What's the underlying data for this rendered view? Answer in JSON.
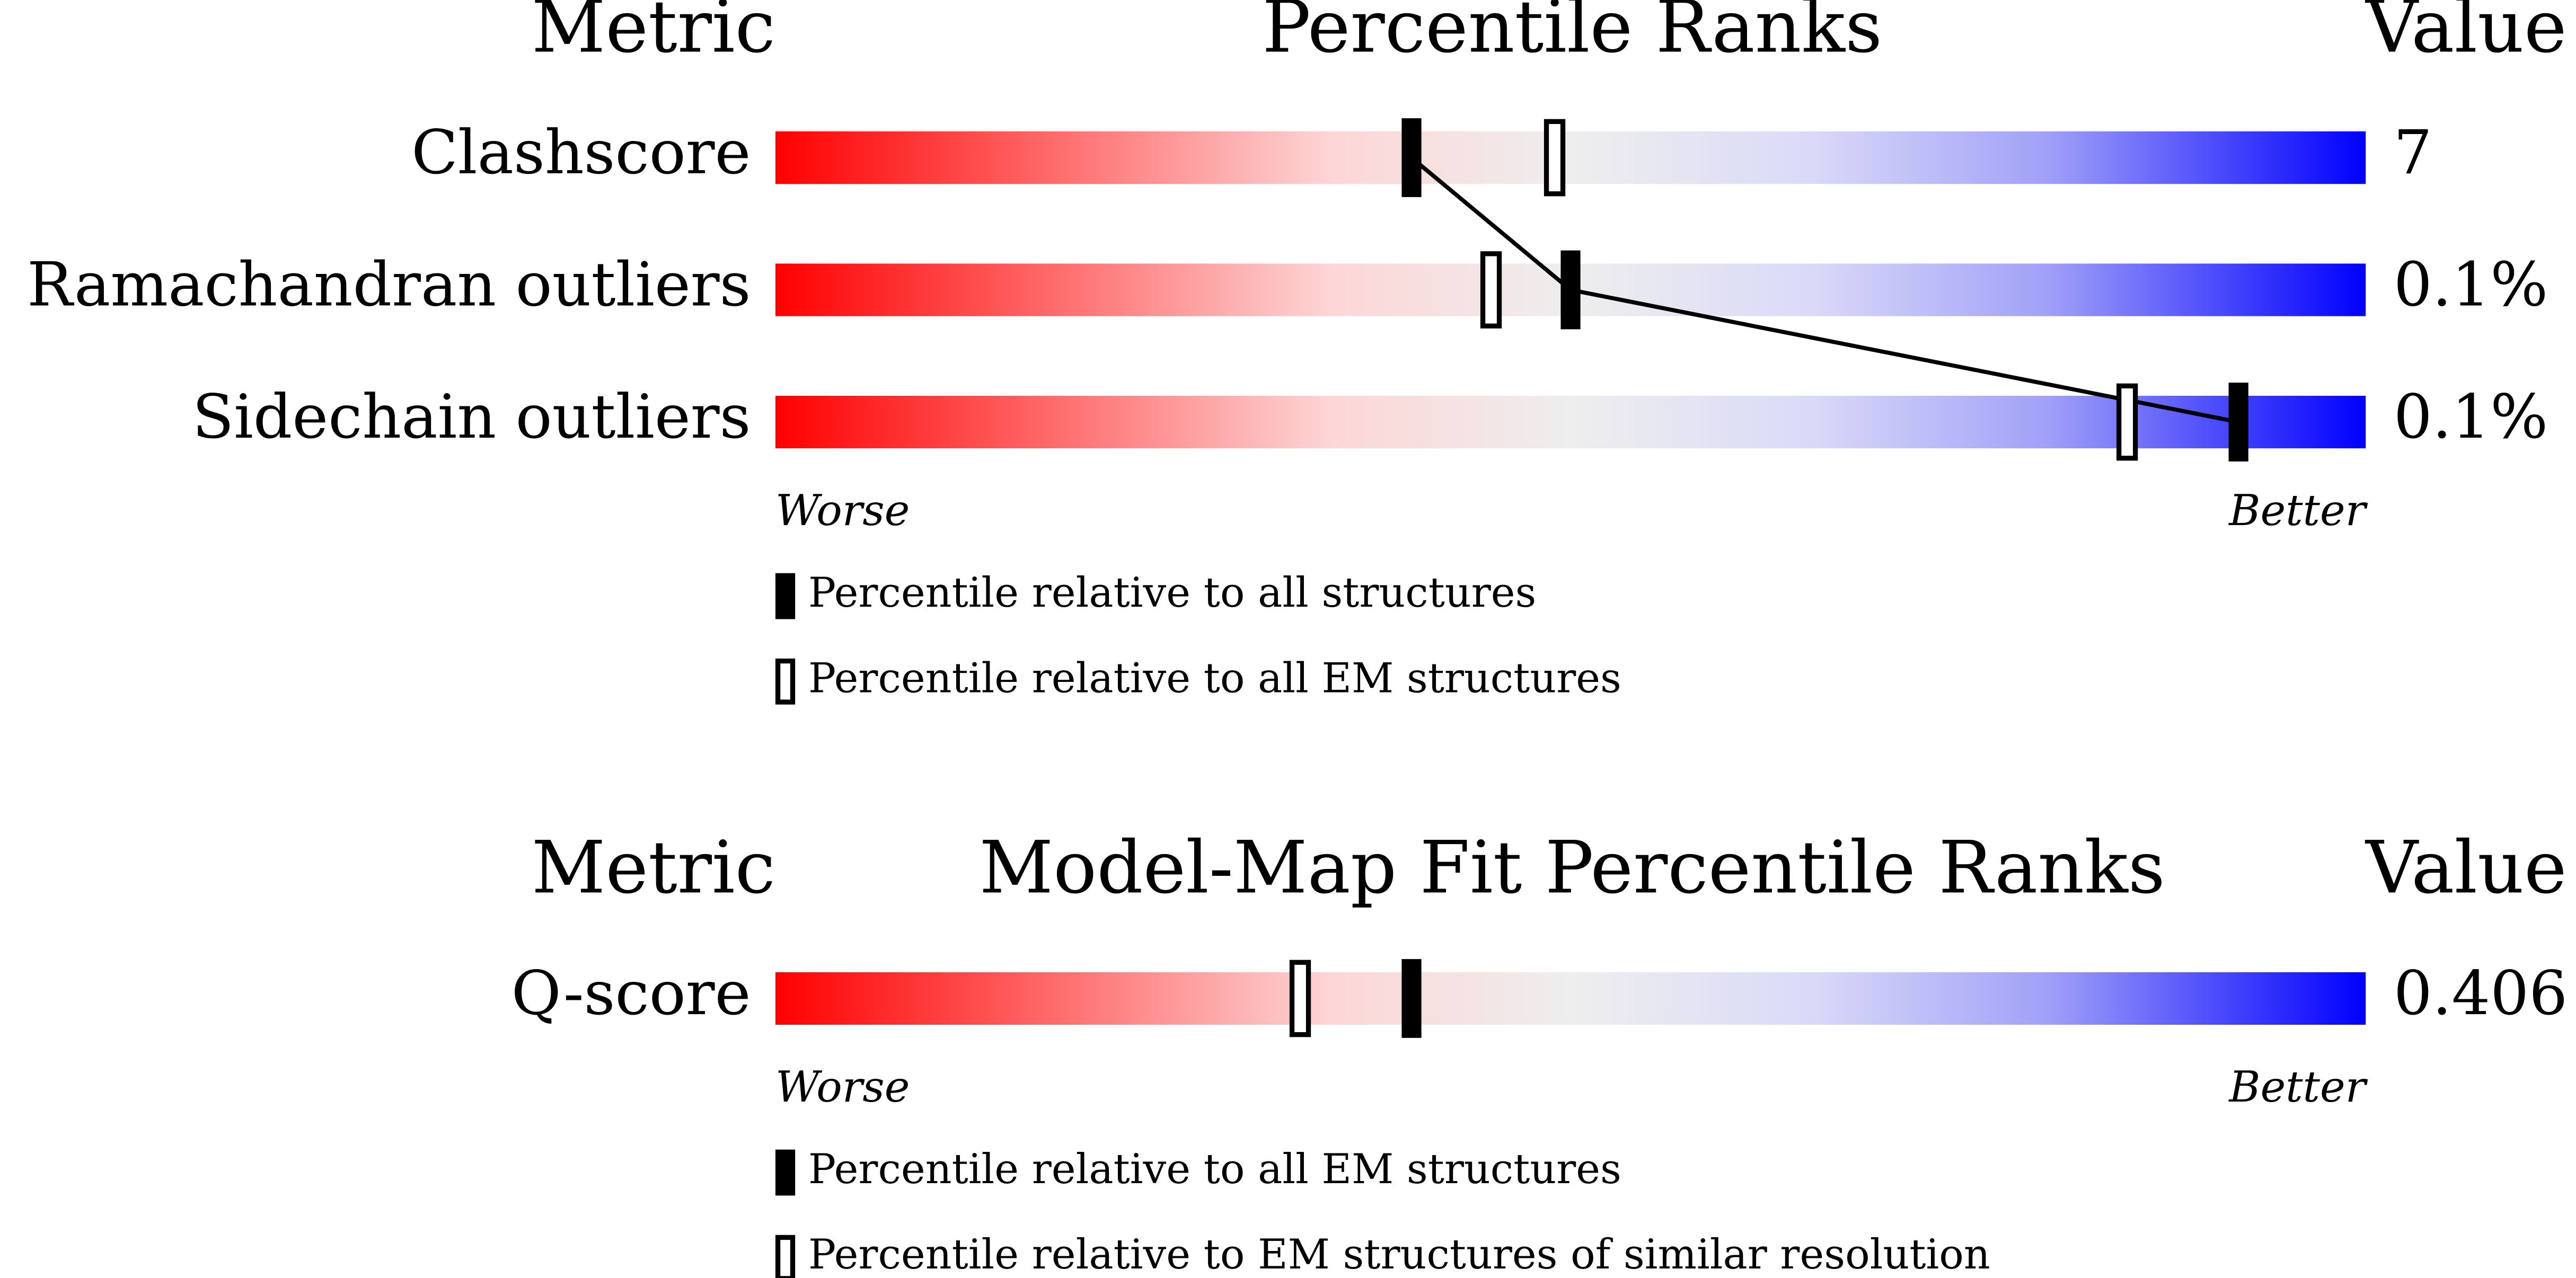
{
  "chart_data": [
    {
      "type": "percentile-slider",
      "header": {
        "metric": "Metric",
        "title": "Percentile Ranks",
        "value": "Value"
      },
      "xlim": [
        0,
        100
      ],
      "worse": "Worse",
      "better": "Better",
      "categories": [
        "Clashscore",
        "Ramachandran outliers",
        "Sidechain outliers"
      ],
      "metric_values": [
        "7",
        "0.1%",
        "0.1%"
      ],
      "connector": true,
      "series": [
        {
          "name": "Percentile relative to all structures",
          "style": "filled",
          "color": "#000000",
          "values": [
            40,
            50,
            92
          ]
        },
        {
          "name": "Percentile relative to all EM structures",
          "style": "open",
          "color": "#000000",
          "values": [
            49,
            45,
            85
          ]
        }
      ]
    },
    {
      "type": "percentile-slider",
      "header": {
        "metric": "Metric",
        "title": "Model-Map Fit Percentile Ranks",
        "value": "Value"
      },
      "xlim": [
        0,
        100
      ],
      "worse": "Worse",
      "better": "Better",
      "categories": [
        "Q-score"
      ],
      "metric_values": [
        "0.406"
      ],
      "connector": true,
      "series": [
        {
          "name": "Percentile relative to all EM structures",
          "style": "filled",
          "color": "#000000",
          "values": [
            40
          ]
        },
        {
          "name": "Percentile relative to EM structures of similar resolution",
          "style": "open",
          "color": "#000000",
          "values": [
            33
          ]
        }
      ]
    }
  ]
}
